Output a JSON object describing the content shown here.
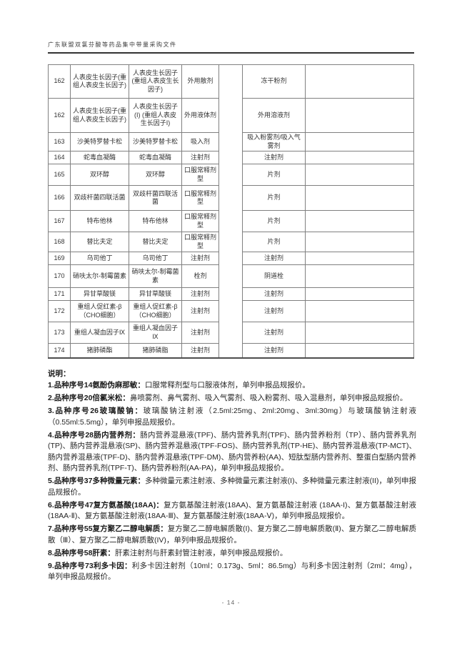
{
  "header": {
    "title": "广东联盟双氯芬酸等药品集中带量采购文件"
  },
  "table": {
    "rows": [
      {
        "no": "162",
        "name1": "人表皮生长因子(重组人表皮生长因子)",
        "name2": "人表皮生长因子(重组人表皮生长因子)",
        "form": "外用散剂",
        "form2": "冻干粉剂",
        "note": ""
      },
      {
        "no": "162",
        "name1": "人表皮生长因子(重组人表皮生长因子)",
        "name2": "人表皮生长因子(I) (重组人表皮生长因子I)",
        "form": "外用液体剂",
        "form2": "外用溶液剂",
        "note": ""
      },
      {
        "no": "163",
        "name1": "沙美特罗替卡松",
        "name2": "沙美特罗替卡松",
        "form": "吸入剂",
        "form2": "吸入粉雾剂/吸入气雾剂",
        "note": ""
      },
      {
        "no": "164",
        "name1": "蛇毒血凝酶",
        "name2": "蛇毒血凝酶",
        "form": "注射剂",
        "form2": "注射剂",
        "note": ""
      },
      {
        "no": "165",
        "name1": "双环醇",
        "name2": "双环醇",
        "form": "口服常释剂型",
        "form2": "片剂",
        "note": ""
      },
      {
        "no": "166",
        "name1": "双歧杆菌四联活菌",
        "name2": "双歧杆菌四联活菌",
        "form": "口服常释剂型",
        "form2": "片剂",
        "note": ""
      },
      {
        "no": "167",
        "name1": "特布他林",
        "name2": "特布他林",
        "form": "口服常释剂型",
        "form2": "片剂",
        "note": ""
      },
      {
        "no": "168",
        "name1": "替比夫定",
        "name2": "替比夫定",
        "form": "口服常释剂型",
        "form2": "片剂",
        "note": ""
      },
      {
        "no": "169",
        "name1": "乌司他丁",
        "name2": "乌司他丁",
        "form": "注射剂",
        "form2": "注射剂",
        "note": ""
      },
      {
        "no": "170",
        "name1": "硝呋太尔-制霉菌素",
        "name2": "硝呋太尔-制霉菌素",
        "form": "栓剂",
        "form2": "阴道栓",
        "note": ""
      },
      {
        "no": "171",
        "name1": "异甘草酸镁",
        "name2": "异甘草酸镁",
        "form": "注射剂",
        "form2": "注射剂",
        "note": ""
      },
      {
        "no": "172",
        "name1": "重组人促红素-β（CHO细胞）",
        "name2": "重组人促红素-β（CHO细胞）",
        "form": "注射剂",
        "form2": "注射剂",
        "note": ""
      },
      {
        "no": "173",
        "name1": "重组人凝血因子Ⅸ",
        "name2": "重组人凝血因子Ⅸ",
        "form": "注射剂",
        "form2": "注射剂",
        "note": ""
      },
      {
        "no": "174",
        "name1": "猪肺磷酯",
        "name2": "猪肺磷脂",
        "form": "注射剂",
        "form2": "注射剂",
        "note": ""
      }
    ]
  },
  "notes": {
    "title": "说明：",
    "items": [
      {
        "label": "1.品种序号14氨酚伪麻那敏：",
        "text": "口服常释剂型与口服液体剂，单列申报品规报价。"
      },
      {
        "label": "2.品种序号20倍氯米松：",
        "text": "鼻喷雾剂、鼻气雾剂、吸入气雾剂、吸入粉雾剂、吸入混悬剂，单列申报品规报价。"
      },
      {
        "label": "3.品种序号26玻璃酸钠：",
        "text": "玻璃酸钠注射液（2.5ml:25mg、2ml:20mg、3ml:30mg）与玻璃酸钠注射液（0.55ml:5.5mg），单列申报品规报价。"
      },
      {
        "label": "4.品种序号28肠内营养剂：",
        "text": "肠内营养混悬液(TPF)、肠内营养乳剂(TPF)、肠内营养粉剂（TP）、肠内营养乳剂(TP)、肠内营养混悬液(SP)、肠内营养混悬液(TPF-FOS)、肠内营养乳剂(TP-HE)、肠内营养混悬液(TP-MCT)、肠内营养混悬液(TPF-D)、肠内营养混悬液(TPF-DM)、肠内营养粉(AA)、短肽型肠内营养剂、整蛋白型肠内营养剂、肠内营养乳剂(TPF-T)、肠内营养粉剂(AA-PA)，单列申报品规报价。"
      },
      {
        "label": "5.品种序号37多种微量元素：",
        "text": "多种微量元素注射液、多种微量元素注射液(I)、多种微量元素注射液(II)，单列申报品规报价。"
      },
      {
        "label": "6.品种序号47复方氨基酸(18AA)：",
        "text": "复方氨基酸注射液(18AA)、复方氨基酸注射液 (18AA-I)、复方氨基酸注射液(18AA-Ⅱ)、复方氨基酸注射液(18AA-Ⅲ)、复方氨基酸注射液(18AA-Ⅴ)，单列申报品规报价。"
      },
      {
        "label": "7.品种序号55复方聚乙二醇电解质：",
        "text": "复方聚乙二醇电解质散(I)、复方聚乙二醇电解质散(Ⅱ)、复方聚乙二醇电解质散（Ⅲ）、复方聚乙二醇电解质散(IV)，单列申报品规报价。"
      },
      {
        "label": "8.品种序号58肝素：",
        "text": "肝素注射剂与肝素封管注射液，单列申报品规报价。"
      },
      {
        "label": "9.品种序号73利多卡因：",
        "text": "利多卡因注射剂（10ml：0.173g、5ml：86.5mg）与利多卡因注射剂（2ml：4mg），单列申报品规报价。"
      }
    ]
  },
  "footer": {
    "page_number": "- 14 -"
  },
  "colors": {
    "table_border": "#808080",
    "text": "#333333",
    "header_rule": "#333333"
  }
}
